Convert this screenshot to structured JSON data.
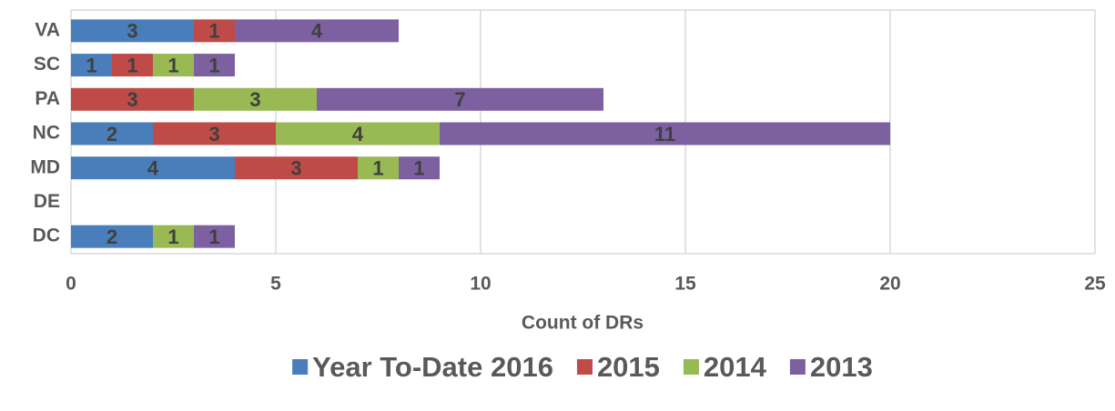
{
  "chart_data": {
    "type": "stacked-bar-horizontal",
    "x_label": "Count of DRs",
    "categories": [
      "VA",
      "SC",
      "PA",
      "NC",
      "MD",
      "DE",
      "DC"
    ],
    "series": [
      {
        "name": "Year To-Date 2016",
        "color": "#4a7ebb",
        "values": [
          3,
          1,
          null,
          2,
          4,
          null,
          2
        ]
      },
      {
        "name": "2015",
        "color": "#be4b48",
        "values": [
          1,
          1,
          3,
          3,
          3,
          null,
          null
        ]
      },
      {
        "name": "2014",
        "color": "#98b954",
        "values": [
          null,
          1,
          3,
          4,
          1,
          null,
          1
        ]
      },
      {
        "name": "2013",
        "color": "#7d60a0",
        "values": [
          4,
          1,
          7,
          11,
          1,
          null,
          1
        ]
      }
    ],
    "xlim": [
      0,
      25
    ],
    "xticks": [
      0,
      5,
      10,
      15,
      20,
      25
    ],
    "grid": true
  }
}
